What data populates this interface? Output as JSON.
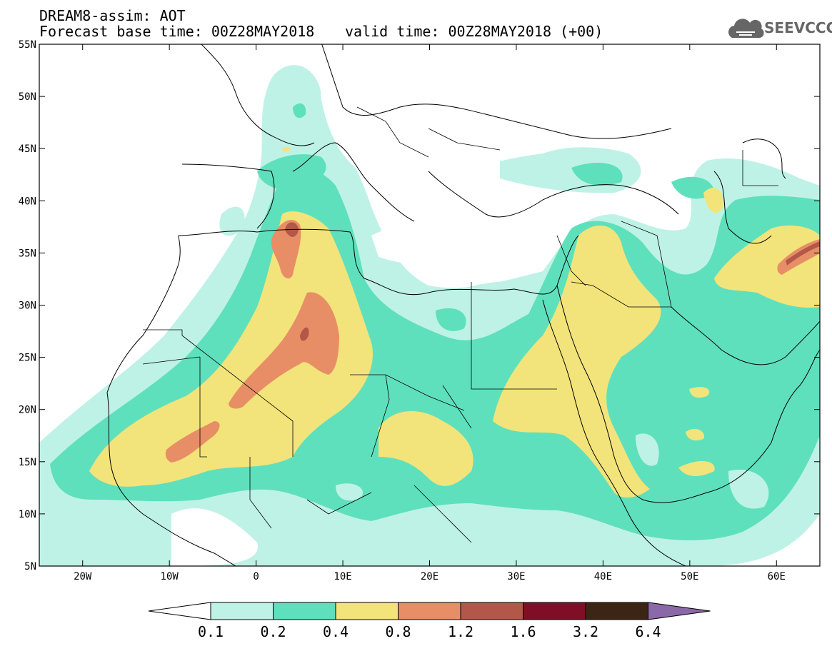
{
  "header": {
    "line1": "DREAM8-assim: AOT",
    "line2": "Forecast base time: 00Z28MAY2018",
    "line2b": "valid time: 00Z28MAY2018 (+00)",
    "logo_text": "SEEVCCC"
  },
  "map": {
    "lon_range": [
      -25,
      65
    ],
    "lat_range": [
      5,
      55
    ],
    "lat_ticks": [
      "5N",
      "10N",
      "15N",
      "20N",
      "25N",
      "30N",
      "35N",
      "40N",
      "45N",
      "50N",
      "55N"
    ],
    "lon_ticks": [
      "20W",
      "10W",
      "0",
      "10E",
      "20E",
      "30E",
      "40E",
      "50E",
      "60E"
    ],
    "icons": [
      "cloud-logo-icon"
    ]
  },
  "colorbar": {
    "labels": [
      "0.1",
      "0.2",
      "0.4",
      "0.8",
      "1.2",
      "1.6",
      "3.2",
      "6.4"
    ],
    "colors": [
      "#ffffff",
      "#bff2e6",
      "#5fe0bc",
      "#f2e47a",
      "#e88e67",
      "#b35848",
      "#7e0f26",
      "#3d2516",
      "#8b69a8"
    ]
  },
  "colors": {
    "aot_01_02": "#bff2e6",
    "aot_02_04": "#5fe0bc",
    "aot_04_08": "#f2e47a",
    "aot_08_12": "#e88e67",
    "aot_12_16": "#b35848",
    "aot_16_32": "#7e0f26"
  }
}
